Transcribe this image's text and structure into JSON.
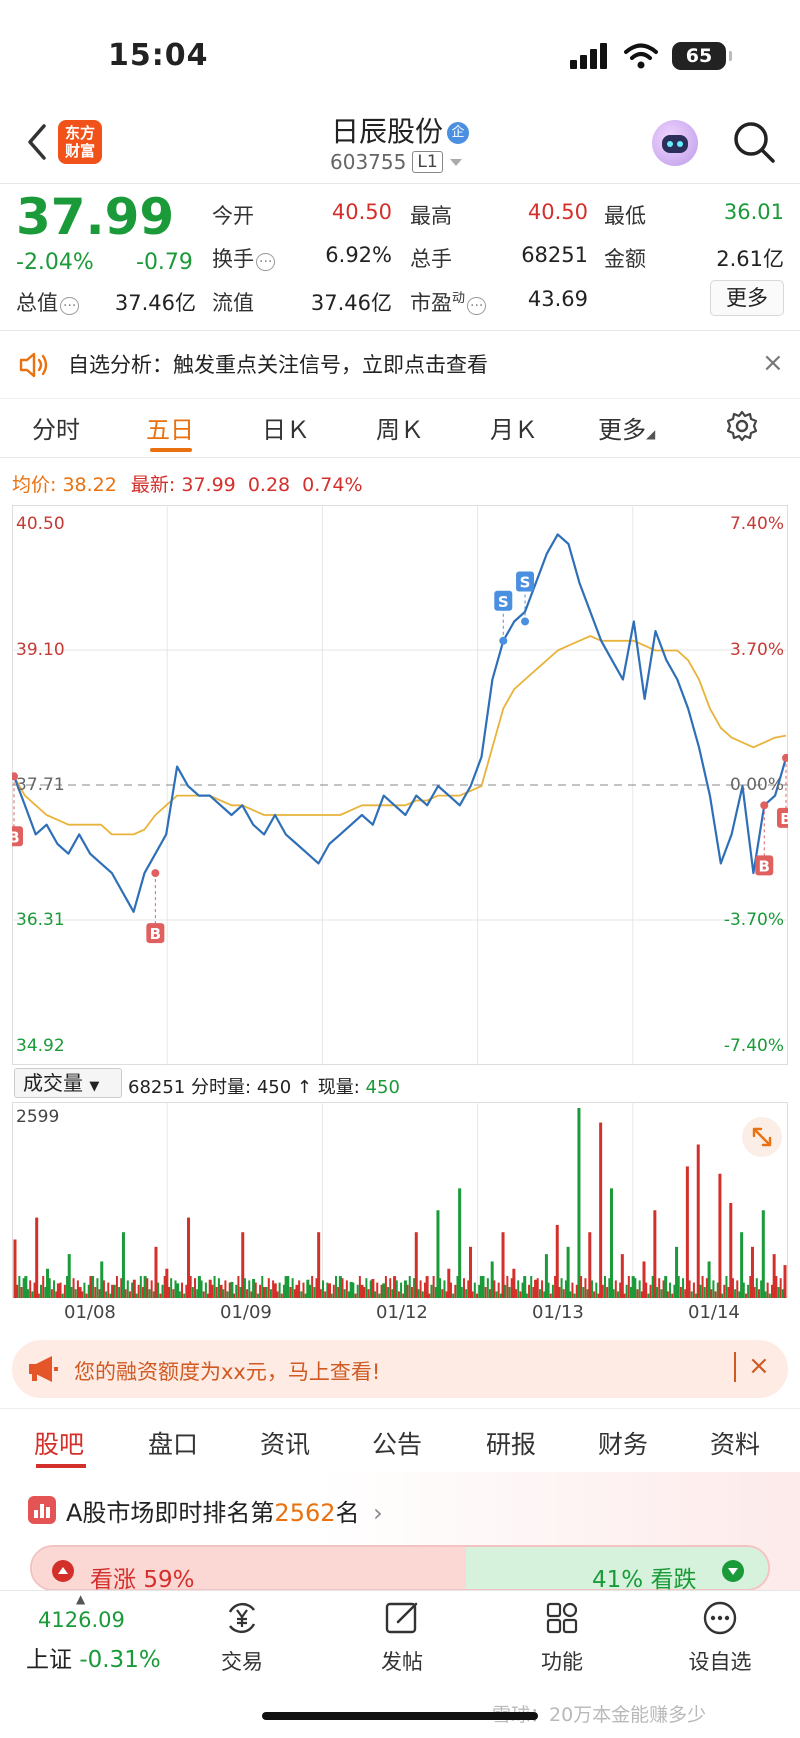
{
  "status_bar": {
    "time": "15:04",
    "battery": "65"
  },
  "header": {
    "logo_text_1": "东方",
    "logo_text_2": "财富",
    "stock_name": "日辰股份",
    "name_badge": "企",
    "stock_code": "603755",
    "level": "L1"
  },
  "quote": {
    "price": "37.99",
    "change_pct": "-2.04%",
    "change": "-0.79",
    "fields": [
      {
        "label": "今开",
        "value": "40.50",
        "color": "red"
      },
      {
        "label": "最高",
        "value": "40.50",
        "color": "red"
      },
      {
        "label": "最低",
        "value": "36.01",
        "color": "green"
      },
      {
        "label": "换手",
        "value": "6.92%",
        "color": "black"
      },
      {
        "label": "总手",
        "value": "68251",
        "color": "black"
      },
      {
        "label": "金额",
        "value": "2.61亿",
        "color": "black"
      },
      {
        "label": "总值",
        "value": "37.46亿",
        "color": "black"
      },
      {
        "label": "流值",
        "value": "37.46亿",
        "color": "black"
      },
      {
        "label": "市盈",
        "sup": "动",
        "value": "43.69",
        "color": "black"
      }
    ],
    "more_label": "更多"
  },
  "analysis_banner": {
    "text": "自选分析：触发重点关注信号，立即点击查看"
  },
  "chart_tabs": [
    "分时",
    "五日",
    "日Ｋ",
    "周Ｋ",
    "月Ｋ",
    "更多"
  ],
  "chart_info": {
    "avg_label": "均价:",
    "avg_value": "38.22",
    "latest_label": "最新:",
    "latest_value": "37.99",
    "latest_change": "0.28",
    "latest_pct": "0.74%"
  },
  "chart_data": {
    "type": "line",
    "title": "",
    "x_labels": [
      "01/08",
      "01/09",
      "01/12",
      "01/13",
      "01/14"
    ],
    "y_left_ticks": [
      "40.50",
      "39.10",
      "37.71",
      "36.31",
      "34.92"
    ],
    "y_right_ticks": [
      "7.40%",
      "3.70%",
      "0.00%",
      "-3.70%",
      "-7.40%"
    ],
    "ylim": [
      34.92,
      40.5
    ],
    "prev_close": 37.71,
    "series": [
      {
        "points": [
          37.8,
          37.5,
          37.2,
          37.3,
          37.1,
          37.0,
          37.2,
          37.0,
          36.9,
          36.8,
          36.6,
          36.4,
          36.8,
          37.0,
          37.2,
          37.9,
          37.7,
          37.6,
          37.6,
          37.5,
          37.4,
          37.5,
          37.3,
          37.2,
          37.4,
          37.2,
          37.1,
          37.0,
          36.9,
          37.1,
          37.2,
          37.3,
          37.4,
          37.3,
          37.6,
          37.5,
          37.4,
          37.6,
          37.5,
          37.7,
          37.6,
          37.5,
          37.7,
          38.0,
          38.8,
          39.2,
          39.4,
          39.5,
          39.8,
          40.1,
          40.3,
          40.2,
          39.8,
          39.5,
          39.2,
          39.0,
          38.8,
          39.4,
          38.6,
          39.3,
          39.0,
          38.8,
          38.5,
          38.1,
          37.6,
          36.9,
          37.2,
          37.7,
          36.8,
          37.5,
          37.6,
          37.99
        ]
      },
      {
        "points": [
          37.8,
          37.6,
          37.5,
          37.4,
          37.35,
          37.3,
          37.3,
          37.3,
          37.3,
          37.2,
          37.2,
          37.2,
          37.25,
          37.4,
          37.5,
          37.6,
          37.6,
          37.6,
          37.6,
          37.55,
          37.5,
          37.5,
          37.45,
          37.4,
          37.4,
          37.4,
          37.4,
          37.4,
          37.4,
          37.4,
          37.4,
          37.45,
          37.5,
          37.5,
          37.5,
          37.5,
          37.5,
          37.55,
          37.55,
          37.6,
          37.6,
          37.6,
          37.65,
          37.7,
          38.1,
          38.5,
          38.7,
          38.8,
          38.9,
          39.0,
          39.1,
          39.15,
          39.2,
          39.25,
          39.2,
          39.2,
          39.2,
          39.2,
          39.15,
          39.1,
          39.1,
          39.1,
          39.0,
          38.8,
          38.5,
          38.3,
          38.2,
          38.15,
          38.1,
          38.15,
          38.2,
          38.22
        ]
      }
    ],
    "trade_markers": [
      {
        "label": "B",
        "x_index": 0,
        "value": 37.8
      },
      {
        "label": "B",
        "x_index": 13,
        "value": 36.8
      },
      {
        "label": "S",
        "x_index": 45,
        "value": 39.2
      },
      {
        "label": "S",
        "x_index": 47,
        "value": 39.4
      },
      {
        "label": "B",
        "x_index": 69,
        "value": 37.5
      },
      {
        "label": "B",
        "x_index": 71,
        "value": 37.99
      }
    ],
    "volume": {
      "max": "2599",
      "bars": [
        800,
        300,
        1100,
        400,
        200,
        600,
        150,
        300,
        500,
        180,
        900,
        250,
        300,
        700,
        400,
        200,
        1100,
        300,
        250,
        180,
        220,
        900,
        260,
        150,
        200,
        300,
        180,
        250,
        900,
        200,
        300,
        220,
        180,
        260,
        200,
        300,
        240,
        900,
        300,
        1200,
        400,
        1500,
        700,
        300,
        500,
        900,
        400,
        300,
        250,
        600,
        1000,
        700,
        2599,
        900,
        2400,
        1500,
        600,
        300,
        500,
        1200,
        300,
        700,
        1800,
        2100,
        500,
        1700,
        1300,
        900,
        700,
        1200,
        600,
        450
      ],
      "up": [
        1,
        0,
        1,
        0,
        1,
        0,
        1,
        1,
        0,
        1,
        0,
        1,
        0,
        1,
        1,
        0,
        1,
        0,
        1,
        1,
        0,
        1,
        0,
        1,
        1,
        0,
        1,
        0,
        1,
        1,
        0,
        0,
        1,
        1,
        0,
        1,
        0,
        1,
        1,
        0,
        1,
        0,
        1,
        0,
        0,
        1,
        1,
        0,
        1,
        0,
        1,
        0,
        0,
        1,
        1,
        0,
        1,
        0,
        1,
        1,
        0,
        0,
        1,
        1,
        0,
        1,
        1,
        0,
        1,
        0,
        1,
        1
      ]
    }
  },
  "volume_toolbar": {
    "select_label": "成交量",
    "info_total": "68251",
    "info_minute_label": "分时量:",
    "info_minute": "450",
    "info_now_label": "现量:",
    "info_now": "450"
  },
  "margin_banner": {
    "text": "您的融资额度为xx元，马上查看!"
  },
  "info_tabs": [
    "股吧",
    "盘口",
    "资讯",
    "公告",
    "研报",
    "财务",
    "资料"
  ],
  "ranking": {
    "text_prefix": "A股市场即时排名第",
    "rank": "2562",
    "text_suffix": "名",
    "bull_label": "看涨",
    "bull_pct": "59%",
    "bear_pct": "41%",
    "bear_label": "看跌",
    "bull_share": 0.59
  },
  "bottom_nav": {
    "index_value": "4126.09",
    "index_name": "上证",
    "index_change": "-0.31%",
    "items": [
      {
        "label": "交易",
        "icon": "yen-exchange-icon"
      },
      {
        "label": "发帖",
        "icon": "edit-post-icon"
      },
      {
        "label": "功能",
        "icon": "grid-apps-icon"
      },
      {
        "label": "设自选",
        "icon": "more-dots-icon"
      }
    ]
  },
  "watermark": "雪球：20万本金能赚多少"
}
